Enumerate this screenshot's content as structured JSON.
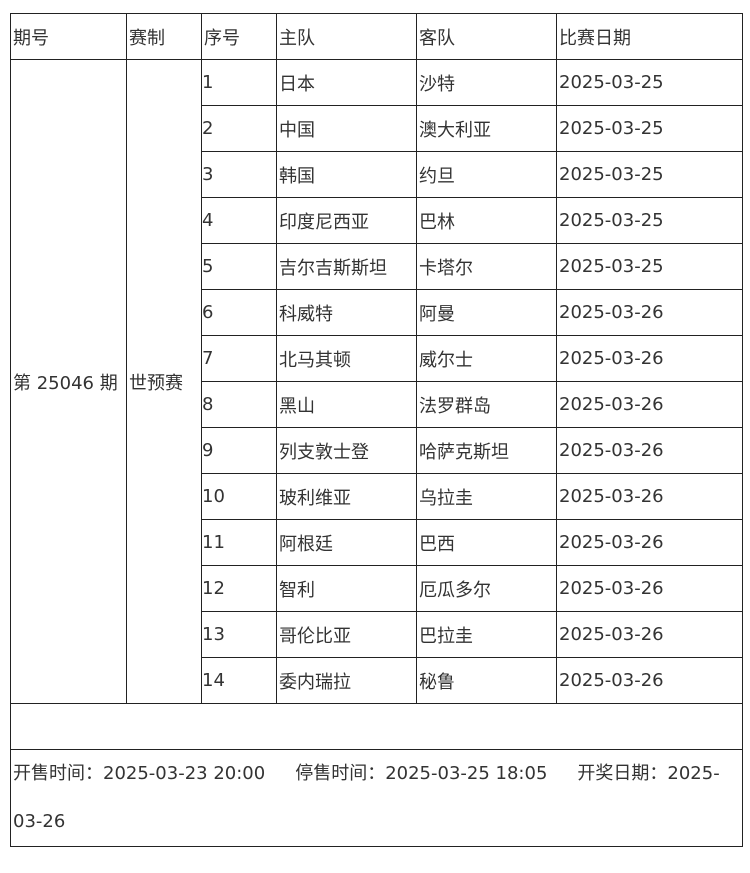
{
  "table": {
    "header": [
      "期号",
      "赛制",
      "序号",
      "主队",
      "客队",
      "比赛日期"
    ],
    "period": "第 25046 期",
    "format": "世预赛",
    "rows": [
      [
        "1",
        "日本",
        "沙特",
        "2025-03-25"
      ],
      [
        "2",
        "中国",
        "澳大利亚",
        "2025-03-25"
      ],
      [
        "3",
        "韩国",
        "约旦",
        "2025-03-25"
      ],
      [
        "4",
        "印度尼西亚",
        "巴林",
        "2025-03-25"
      ],
      [
        "5",
        "吉尔吉斯斯坦",
        "卡塔尔",
        "2025-03-25"
      ],
      [
        "6",
        "科威特",
        "阿曼",
        "2025-03-26"
      ],
      [
        "7",
        "北马其顿",
        "威尔士",
        "2025-03-26"
      ],
      [
        "8",
        "黑山",
        "法罗群岛",
        "2025-03-26"
      ],
      [
        "9",
        "列支敦士登",
        "哈萨克斯坦",
        "2025-03-26"
      ],
      [
        "10",
        "玻利维亚",
        "乌拉圭",
        "2025-03-26"
      ],
      [
        "11",
        "阿根廷",
        "巴西",
        "2025-03-26"
      ],
      [
        "12",
        "智利",
        "厄瓜多尔",
        "2025-03-26"
      ],
      [
        "13",
        "哥伦比亚",
        "巴拉圭",
        "2025-03-26"
      ],
      [
        "14",
        "委内瑞拉",
        "秘鲁",
        "2025-03-26"
      ]
    ],
    "footer": [
      "开售时间：2025-03-23 20:00",
      "停售时间：2025-03-25 18:05",
      "开奖日期：2025-03-26"
    ]
  }
}
